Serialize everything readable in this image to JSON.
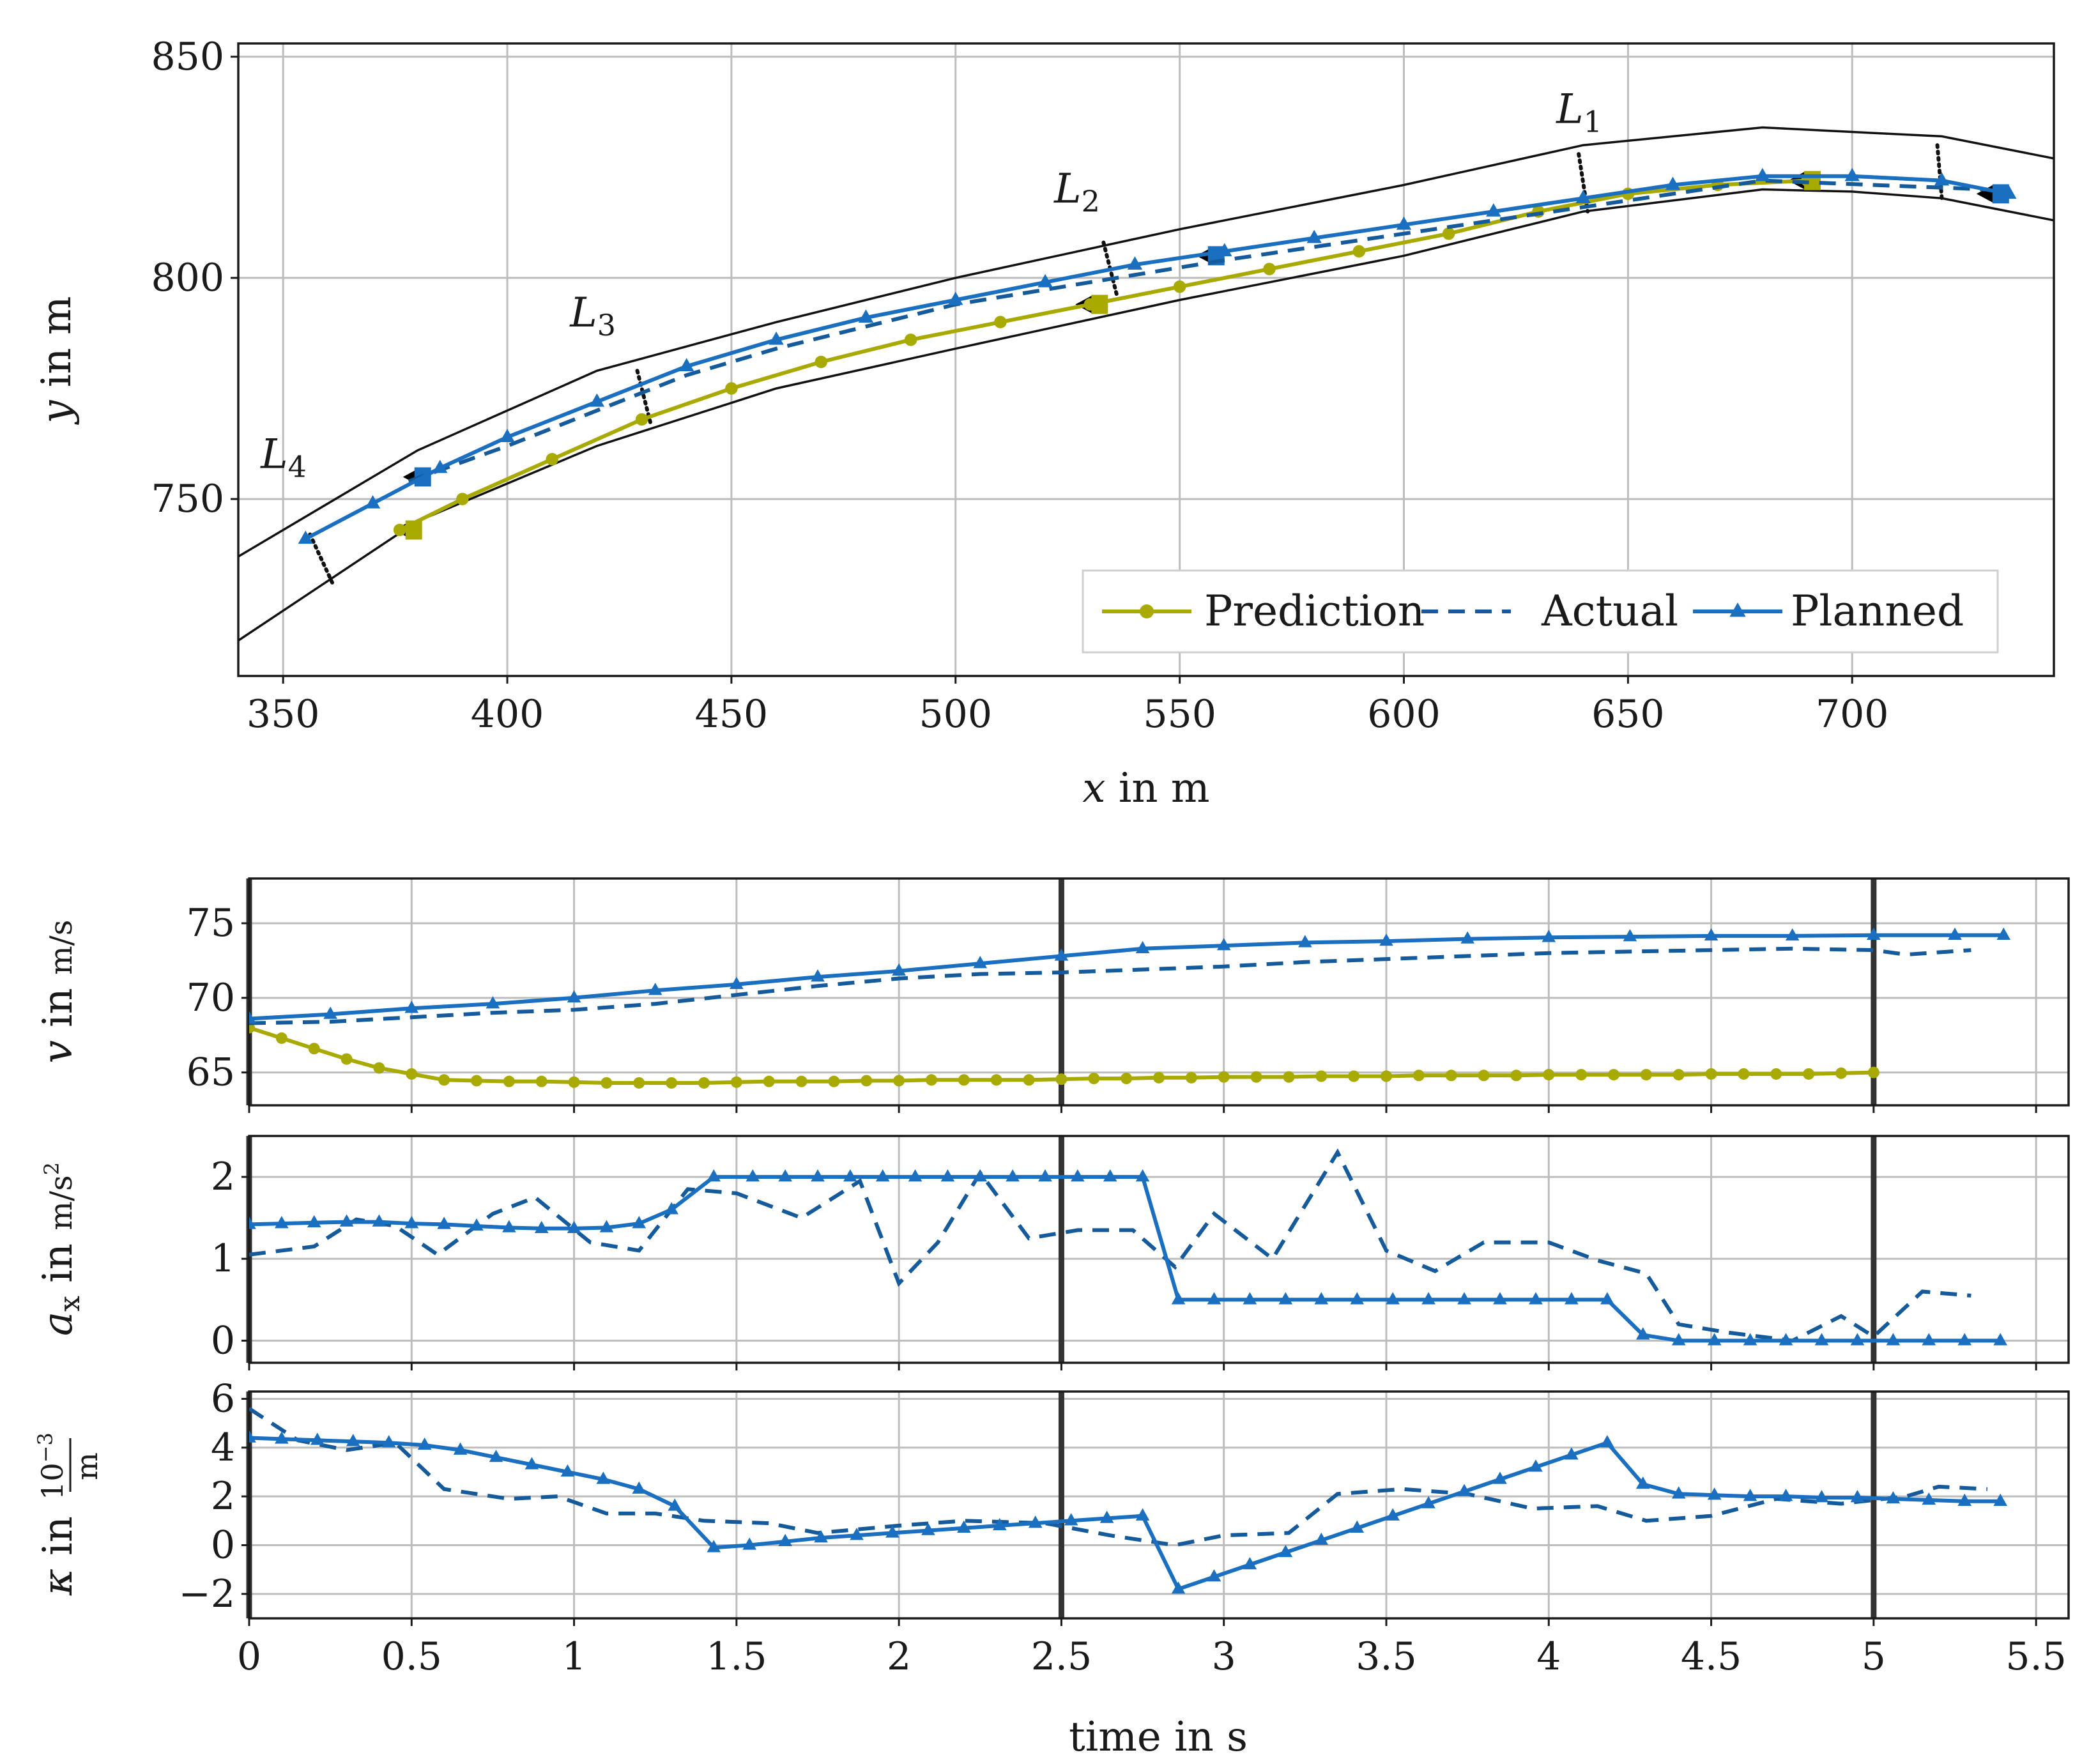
{
  "colors": {
    "prediction": "#a8aa00",
    "actual": "#155a9b",
    "planned": "#1a6fc1",
    "boundary": "#111111",
    "marker_black": "#000000",
    "marker_blue": "#1a6fc1",
    "marker_olive": "#a8aa00",
    "grid": "#bdbdbd",
    "event_line": "#333333"
  },
  "chart_data": [
    {
      "id": "trajectory",
      "type": "line",
      "xlabel": "x in m",
      "ylabel": "y in m",
      "xlim": [
        340,
        745
      ],
      "ylim": [
        710,
        853
      ],
      "xticks": [
        350,
        400,
        450,
        500,
        550,
        600,
        650,
        700
      ],
      "yticks": [
        750,
        800,
        850
      ],
      "grid": true,
      "legend": {
        "placement": "bottom-right",
        "entries": [
          "Prediction",
          "Actual",
          "Planned"
        ]
      },
      "boundaries": [
        {
          "name": "upper boundary",
          "x": [
            340,
            380,
            420,
            460,
            500,
            550,
            600,
            640,
            680,
            700,
            720,
            745
          ],
          "y": [
            737,
            761,
            779,
            790,
            800,
            811,
            821,
            830,
            834,
            833,
            832,
            827
          ]
        },
        {
          "name": "lower boundary",
          "x": [
            340,
            380,
            420,
            460,
            500,
            550,
            600,
            640,
            680,
            700,
            720,
            745
          ],
          "y": [
            718,
            745,
            762,
            775,
            784,
            795,
            805,
            815,
            820,
            819.5,
            818,
            813
          ]
        }
      ],
      "segment_labels": [
        {
          "main": "L",
          "sub": "1",
          "x": 634,
          "y": 835
        },
        {
          "main": "L",
          "sub": "2",
          "x": 522,
          "y": 817
        },
        {
          "main": "L",
          "sub": "3",
          "x": 414,
          "y": 789
        },
        {
          "main": "L",
          "sub": "4",
          "x": 345,
          "y": 757
        }
      ],
      "segment_lines": [
        {
          "x": [
            639,
            641
          ],
          "y": [
            828,
            815
          ]
        },
        {
          "x": [
            533,
            536
          ],
          "y": [
            808,
            796
          ]
        },
        {
          "x": [
            429,
            432
          ],
          "y": [
            779,
            767
          ]
        },
        {
          "x": [
            356,
            361
          ],
          "y": [
            742,
            731
          ]
        },
        {
          "x": [
            719,
            720
          ],
          "y": [
            830,
            818
          ]
        }
      ],
      "series": [
        {
          "name": "Prediction",
          "style": "solid-circle",
          "x": [
            376,
            390,
            410,
            430,
            450,
            470,
            490,
            510,
            530,
            550,
            570,
            590,
            610,
            630,
            650,
            670,
            690
          ],
          "y": [
            743,
            750,
            759,
            768,
            775,
            781,
            786,
            790,
            794,
            798,
            802,
            806,
            810,
            815,
            819,
            821,
            822
          ]
        },
        {
          "name": "Actual",
          "style": "dashed",
          "x": [
            378,
            400,
            420,
            440,
            460,
            480,
            500,
            530,
            560,
            600,
            640,
            680,
            730
          ],
          "y": [
            754,
            762,
            770,
            778,
            784,
            789,
            794,
            799,
            804,
            810,
            816,
            822,
            820
          ]
        },
        {
          "name": "Planned",
          "style": "solid-triangle",
          "x": [
            355,
            370,
            385,
            400,
            420,
            440,
            460,
            480,
            500,
            520,
            540,
            560,
            580,
            600,
            620,
            640,
            660,
            680,
            700,
            720,
            735
          ],
          "y": [
            741,
            749,
            757,
            764,
            772,
            780,
            786,
            791,
            795,
            799,
            803,
            806,
            809,
            812,
            815,
            818,
            821,
            823,
            823,
            822,
            819
          ]
        }
      ],
      "markers": [
        {
          "shape": "triangle-left",
          "color": "black",
          "x": 377,
          "y": 743
        },
        {
          "shape": "square",
          "color": "olive",
          "x": 379,
          "y": 743
        },
        {
          "shape": "triangle-left",
          "color": "black",
          "x": 529,
          "y": 794
        },
        {
          "shape": "square",
          "color": "olive",
          "x": 532,
          "y": 794
        },
        {
          "shape": "triangle-left",
          "color": "black",
          "x": 688,
          "y": 822
        },
        {
          "shape": "square",
          "color": "olive",
          "x": 691,
          "y": 822
        },
        {
          "shape": "triangle-left",
          "color": "black",
          "x": 379,
          "y": 755
        },
        {
          "shape": "square",
          "color": "blue",
          "x": 381,
          "y": 755
        },
        {
          "shape": "triangle-left",
          "color": "black",
          "x": 556,
          "y": 805
        },
        {
          "shape": "square",
          "color": "blue",
          "x": 558,
          "y": 805
        },
        {
          "shape": "triangle-left",
          "color": "black",
          "x": 730,
          "y": 819
        },
        {
          "shape": "square",
          "color": "blue",
          "x": 733,
          "y": 819
        }
      ]
    },
    {
      "id": "velocity",
      "type": "line",
      "xlabel": "",
      "ylabel": "v in m/s",
      "xlim": [
        0,
        5.6
      ],
      "ylim": [
        62.8,
        78
      ],
      "xticks": [
        0,
        0.5,
        1,
        1.5,
        2,
        2.5,
        3,
        3.5,
        4,
        4.5,
        5,
        5.5
      ],
      "yticks": [
        65,
        70,
        75
      ],
      "vlines": [
        0,
        2.5,
        5
      ],
      "grid": true,
      "series": [
        {
          "name": "Prediction",
          "style": "solid-circle",
          "x": [
            0,
            0.1,
            0.2,
            0.3,
            0.4,
            0.5,
            0.6,
            0.7,
            0.8,
            0.9,
            1.0,
            1.1,
            1.2,
            1.3,
            1.4,
            1.5,
            1.6,
            1.7,
            1.8,
            1.9,
            2.0,
            2.1,
            2.2,
            2.3,
            2.4,
            2.5,
            2.6,
            2.7,
            2.8,
            2.9,
            3.0,
            3.1,
            3.2,
            3.3,
            3.4,
            3.5,
            3.6,
            3.7,
            3.8,
            3.9,
            4.0,
            4.1,
            4.2,
            4.3,
            4.4,
            4.5,
            4.6,
            4.7,
            4.8,
            4.9,
            5.0
          ],
          "y": [
            68.0,
            67.3,
            66.6,
            65.9,
            65.3,
            64.9,
            64.5,
            64.45,
            64.4,
            64.4,
            64.35,
            64.3,
            64.3,
            64.3,
            64.3,
            64.35,
            64.4,
            64.4,
            64.4,
            64.45,
            64.45,
            64.5,
            64.5,
            64.5,
            64.5,
            64.55,
            64.6,
            64.6,
            64.65,
            64.65,
            64.7,
            64.7,
            64.7,
            64.75,
            64.75,
            64.75,
            64.8,
            64.8,
            64.8,
            64.8,
            64.85,
            64.85,
            64.85,
            64.85,
            64.85,
            64.9,
            64.9,
            64.9,
            64.9,
            64.95,
            65.0
          ]
        },
        {
          "name": "Actual",
          "style": "dashed",
          "x": [
            0,
            0.25,
            0.5,
            0.75,
            1.0,
            1.25,
            1.5,
            1.75,
            2.0,
            2.25,
            2.5,
            2.75,
            3.0,
            3.25,
            3.5,
            3.75,
            4.0,
            4.25,
            4.5,
            4.75,
            5.0,
            5.1,
            5.3
          ],
          "y": [
            68.3,
            68.4,
            68.7,
            69.0,
            69.2,
            69.6,
            70.2,
            70.8,
            71.3,
            71.6,
            71.7,
            71.9,
            72.1,
            72.4,
            72.6,
            72.8,
            73.0,
            73.1,
            73.2,
            73.3,
            73.2,
            72.9,
            73.2
          ]
        },
        {
          "name": "Planned",
          "style": "solid-triangle",
          "x": [
            0,
            0.25,
            0.5,
            0.75,
            1.0,
            1.25,
            1.5,
            1.75,
            2.0,
            2.25,
            2.5,
            2.75,
            3.0,
            3.25,
            3.5,
            3.75,
            4.0,
            4.25,
            4.5,
            4.75,
            5.0,
            5.25,
            5.4
          ],
          "y": [
            68.6,
            68.9,
            69.3,
            69.6,
            70.0,
            70.5,
            70.9,
            71.4,
            71.8,
            72.3,
            72.8,
            73.3,
            73.5,
            73.7,
            73.8,
            73.95,
            74.05,
            74.1,
            74.15,
            74.15,
            74.2,
            74.2,
            74.2
          ]
        }
      ]
    },
    {
      "id": "acceleration",
      "type": "line",
      "xlabel": "",
      "ylabel": "a_x in m/s^2",
      "xlim": [
        0,
        5.6
      ],
      "ylim": [
        -0.27,
        2.5
      ],
      "xticks": [
        0,
        0.5,
        1,
        1.5,
        2,
        2.5,
        3,
        3.5,
        4,
        4.5,
        5,
        5.5
      ],
      "yticks": [
        0,
        1,
        2
      ],
      "vlines": [
        0,
        2.5,
        5
      ],
      "grid": true,
      "series": [
        {
          "name": "Actual",
          "style": "dashed",
          "x": [
            0,
            0.2,
            0.33,
            0.45,
            0.58,
            0.75,
            0.88,
            1.05,
            1.2,
            1.35,
            1.5,
            1.7,
            1.88,
            2.0,
            2.12,
            2.25,
            2.4,
            2.55,
            2.72,
            2.85,
            2.97,
            3.15,
            3.35,
            3.5,
            3.65,
            3.8,
            4.0,
            4.15,
            4.3,
            4.4,
            4.55,
            4.75,
            4.9,
            5.0,
            5.15,
            5.3
          ],
          "y": [
            1.05,
            1.15,
            1.48,
            1.4,
            1.05,
            1.55,
            1.75,
            1.2,
            1.1,
            1.85,
            1.8,
            1.5,
            1.95,
            0.7,
            1.2,
            2.05,
            1.25,
            1.35,
            1.35,
            0.9,
            1.55,
            1.0,
            2.3,
            1.1,
            0.85,
            1.2,
            1.2,
            0.98,
            0.82,
            0.2,
            0.1,
            0.0,
            0.3,
            0.05,
            0.6,
            0.55
          ]
        },
        {
          "name": "Planned",
          "style": "solid-triangle",
          "x": [
            0,
            0.1,
            0.2,
            0.3,
            0.4,
            0.5,
            0.6,
            0.7,
            0.8,
            0.9,
            1.0,
            1.1,
            1.2,
            1.3,
            1.43,
            1.55,
            1.65,
            1.75,
            1.85,
            1.95,
            2.05,
            2.15,
            2.25,
            2.35,
            2.45,
            2.55,
            2.65,
            2.75,
            2.86,
            2.97,
            3.08,
            3.19,
            3.3,
            3.41,
            3.52,
            3.63,
            3.74,
            3.85,
            3.96,
            4.07,
            4.18,
            4.29,
            4.4,
            4.51,
            4.62,
            4.73,
            4.84,
            4.95,
            5.06,
            5.17,
            5.28,
            5.39
          ],
          "y": [
            1.42,
            1.43,
            1.44,
            1.45,
            1.45,
            1.43,
            1.42,
            1.4,
            1.38,
            1.37,
            1.37,
            1.38,
            1.43,
            1.6,
            2.0,
            2.0,
            2.0,
            2.0,
            2.0,
            2.0,
            2.0,
            2.0,
            2.0,
            2.0,
            2.0,
            2.0,
            2.0,
            2.0,
            0.5,
            0.5,
            0.5,
            0.5,
            0.5,
            0.5,
            0.5,
            0.5,
            0.5,
            0.5,
            0.5,
            0.5,
            0.5,
            0.07,
            0.0,
            0.0,
            0.0,
            0.0,
            0.0,
            0.0,
            0.0,
            0.0,
            0.0,
            0.0
          ]
        }
      ]
    },
    {
      "id": "curvature",
      "type": "line",
      "xlabel": "time in s",
      "ylabel": "kappa in 10^-3 / m",
      "xlim": [
        0,
        5.6
      ],
      "ylim": [
        -3.0,
        6.3
      ],
      "xticks": [
        0,
        0.5,
        1,
        1.5,
        2,
        2.5,
        3,
        3.5,
        4,
        4.5,
        5,
        5.5
      ],
      "yticks": [
        -2,
        0,
        2,
        4,
        6
      ],
      "vlines": [
        0,
        2.5,
        5
      ],
      "grid": true,
      "series": [
        {
          "name": "Actual",
          "style": "dashed",
          "x": [
            0,
            0.15,
            0.3,
            0.45,
            0.6,
            0.8,
            0.95,
            1.1,
            1.25,
            1.4,
            1.6,
            1.75,
            2.0,
            2.2,
            2.45,
            2.65,
            2.85,
            3.0,
            3.2,
            3.35,
            3.55,
            3.75,
            3.95,
            4.15,
            4.3,
            4.5,
            4.7,
            4.9,
            5.1,
            5.2,
            5.35
          ],
          "y": [
            5.6,
            4.3,
            3.9,
            4.2,
            2.3,
            1.9,
            2.0,
            1.3,
            1.3,
            1.0,
            0.9,
            0.5,
            0.8,
            1.0,
            0.9,
            0.4,
            0.0,
            0.4,
            0.5,
            2.1,
            2.3,
            2.1,
            1.5,
            1.6,
            1.0,
            1.2,
            1.9,
            1.7,
            2.0,
            2.4,
            2.3
          ]
        },
        {
          "name": "Planned",
          "style": "solid-triangle",
          "x": [
            0,
            0.1,
            0.21,
            0.32,
            0.43,
            0.54,
            0.65,
            0.76,
            0.87,
            0.98,
            1.09,
            1.2,
            1.31,
            1.43,
            1.54,
            1.65,
            1.76,
            1.87,
            1.98,
            2.09,
            2.2,
            2.31,
            2.42,
            2.53,
            2.64,
            2.75,
            2.86,
            2.97,
            3.08,
            3.19,
            3.3,
            3.41,
            3.52,
            3.63,
            3.74,
            3.85,
            3.96,
            4.07,
            4.18,
            4.29,
            4.4,
            4.51,
            4.62,
            4.73,
            4.84,
            4.95,
            5.06,
            5.17,
            5.28,
            5.39
          ],
          "y": [
            4.4,
            4.35,
            4.3,
            4.25,
            4.2,
            4.1,
            3.9,
            3.6,
            3.3,
            3.0,
            2.7,
            2.3,
            1.6,
            -0.1,
            0.0,
            0.15,
            0.3,
            0.4,
            0.5,
            0.6,
            0.7,
            0.8,
            0.9,
            1.0,
            1.1,
            1.2,
            -1.8,
            -1.3,
            -0.8,
            -0.3,
            0.2,
            0.7,
            1.2,
            1.7,
            2.2,
            2.7,
            3.2,
            3.7,
            4.2,
            2.5,
            2.1,
            2.05,
            2.0,
            2.0,
            1.95,
            1.95,
            1.9,
            1.85,
            1.8,
            1.8
          ]
        }
      ]
    }
  ],
  "ui": {
    "legend_labels": [
      "Prediction",
      "Actual",
      "Planned"
    ],
    "axis_titles": {
      "top_x": "x in m",
      "top_y": "y in m",
      "bottom_x": "time in s",
      "v": "v in m/s",
      "a": "a_x in m/s^2",
      "k": "kappa in 10^-3 / m"
    }
  }
}
